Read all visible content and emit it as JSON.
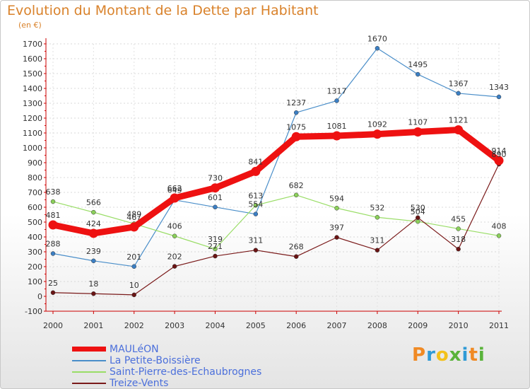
{
  "chart_data": {
    "type": "line",
    "title": "Evolution du Montant de la Dette par Habitant",
    "subtitle": "(en €)",
    "x": [
      "2000",
      "2001",
      "2002",
      "2003",
      "2004",
      "2005",
      "2006",
      "2007",
      "2008",
      "2009",
      "2010",
      "2011"
    ],
    "y_ticks": [
      "-100",
      "0",
      "100",
      "200",
      "300",
      "400",
      "500",
      "600",
      "700",
      "800",
      "900",
      "1000",
      "1100",
      "1200",
      "1300",
      "1400",
      "1500",
      "1600",
      "1700"
    ],
    "ylim": [
      -100,
      1700
    ],
    "grid": true,
    "legend_position": "bottom-left",
    "series": [
      {
        "name": "MAULéON",
        "color": "#ee1111",
        "values": [
          481,
          424,
          467,
          662,
          730,
          841,
          1075,
          1081,
          1092,
          1107,
          1121,
          914
        ]
      },
      {
        "name": "La Petite-Boissière",
        "color": "#4a8ec9",
        "values": [
          288,
          239,
          201,
          649,
          601,
          554,
          1237,
          1317,
          1670,
          1495,
          1367,
          1343
        ]
      },
      {
        "name": "Saint-Pierre-des-Echaubrognes",
        "color": "#99dd66",
        "values": [
          638,
          566,
          489,
          406,
          319,
          613,
          682,
          594,
          532,
          504,
          455,
          408
        ]
      },
      {
        "name": "Treize-Vents",
        "color": "#7a1a1a",
        "values": [
          25,
          18,
          10,
          202,
          271,
          311,
          268,
          397,
          311,
          530,
          318,
          890
        ]
      }
    ]
  },
  "logo": {
    "letters": [
      "P",
      "r",
      "o",
      "x",
      "i",
      "t",
      "i"
    ],
    "colors": [
      "#f08a24",
      "#2f9ad6",
      "#f3c11b",
      "#59b33a",
      "#2f9ad6",
      "#f08a24",
      "#59b33a"
    ]
  }
}
